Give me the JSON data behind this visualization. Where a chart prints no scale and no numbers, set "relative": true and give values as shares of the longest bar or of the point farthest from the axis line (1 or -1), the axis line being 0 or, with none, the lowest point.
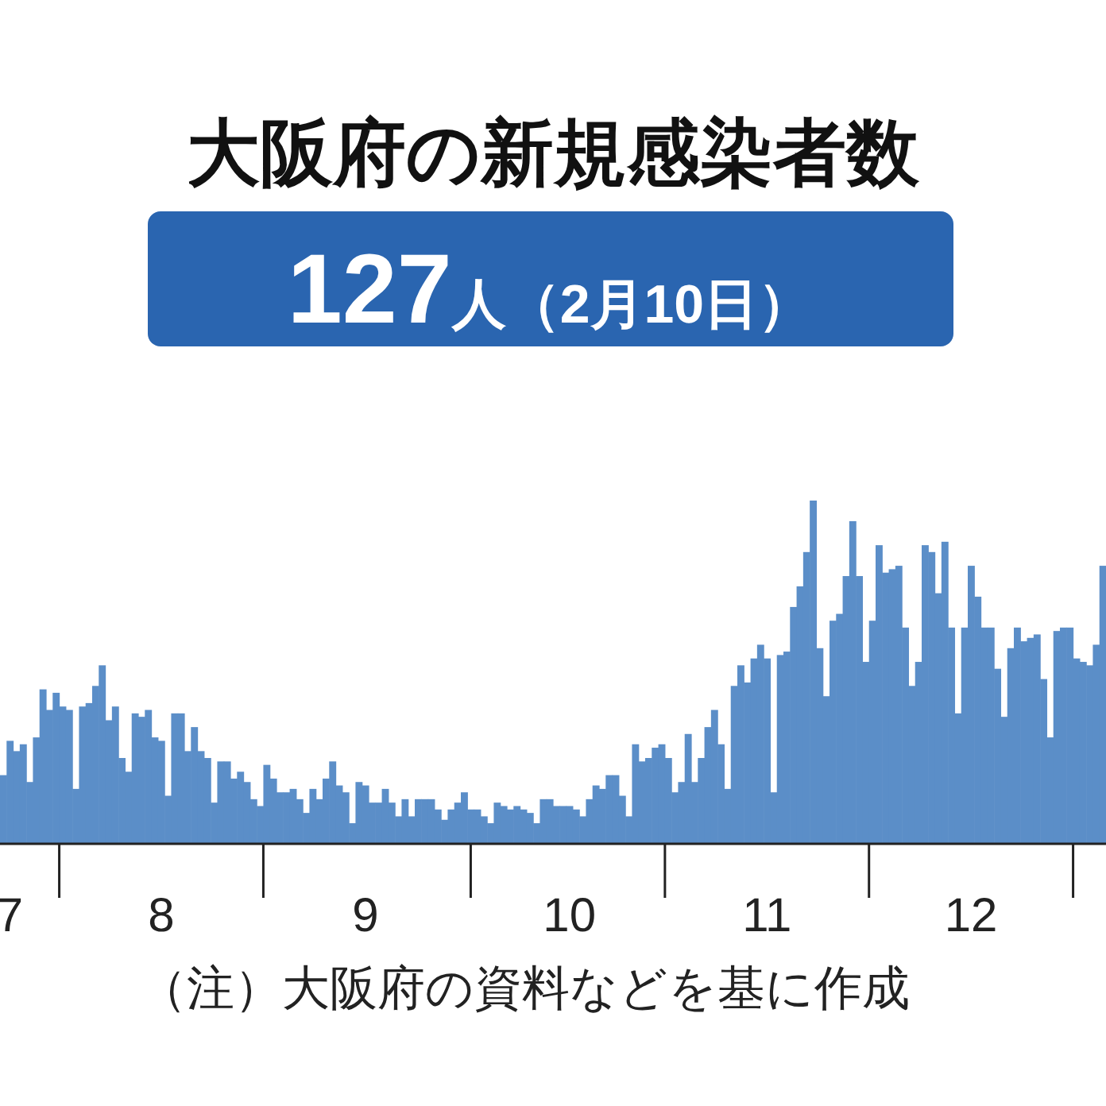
{
  "chart_data": {
    "type": "bar",
    "title": "大阪府の新規感染者数",
    "subtitle": "127人（2月10日）",
    "annotations": [
      "（注）大阪府の資料などを基に作成"
    ],
    "relative": true,
    "color": "#5b8ec8",
    "categories": [
      null,
      "7",
      null,
      null,
      null,
      null,
      null,
      null,
      null,
      null,
      null,
      null,
      null,
      null,
      null,
      null,
      null,
      null,
      null,
      null,
      null,
      null,
      null,
      null,
      "8",
      null,
      null,
      null,
      null,
      null,
      null,
      null,
      null,
      null,
      null,
      null,
      null,
      null,
      null,
      null,
      null,
      null,
      null,
      null,
      null,
      null,
      null,
      null,
      null,
      null,
      null,
      null,
      null,
      null,
      null,
      "9",
      null,
      null,
      null,
      null,
      null,
      null,
      null,
      null,
      null,
      null,
      null,
      null,
      null,
      null,
      null,
      null,
      null,
      null,
      null,
      null,
      null,
      null,
      null,
      null,
      null,
      null,
      null,
      null,
      null,
      null,
      "10",
      null,
      null,
      null,
      null,
      null,
      null,
      null,
      null,
      null,
      null,
      null,
      null,
      null,
      null,
      null,
      null,
      null,
      null,
      null,
      null,
      null,
      null,
      null,
      null,
      null,
      null,
      null,
      null,
      null,
      "11",
      null,
      null,
      null,
      null,
      null,
      null,
      null,
      null,
      null,
      null,
      null,
      null,
      null,
      null,
      null,
      null,
      null,
      null,
      null,
      null,
      null,
      null,
      null,
      null,
      null,
      null,
      null,
      null,
      null,
      null,
      "12",
      null,
      null,
      null,
      null,
      null,
      null,
      null,
      null,
      null,
      null,
      null,
      null,
      null,
      null,
      null,
      null,
      null,
      null,
      null,
      null
    ],
    "values": [
      0.2,
      0.3,
      0.27,
      0.29,
      0.18,
      0.31,
      0.45,
      0.39,
      0.44,
      0.4,
      0.39,
      0.16,
      0.4,
      0.41,
      0.46,
      0.52,
      0.36,
      0.4,
      0.25,
      0.21,
      0.38,
      0.37,
      0.39,
      0.31,
      0.3,
      0.14,
      0.38,
      0.38,
      0.27,
      0.34,
      0.27,
      0.25,
      0.12,
      0.24,
      0.24,
      0.19,
      0.21,
      0.18,
      0.13,
      0.11,
      0.23,
      0.19,
      0.15,
      0.15,
      0.16,
      0.13,
      0.09,
      0.16,
      0.13,
      0.19,
      0.24,
      0.17,
      0.15,
      0.06,
      0.18,
      0.17,
      0.12,
      0.12,
      0.16,
      0.12,
      0.08,
      0.13,
      0.08,
      0.13,
      0.13,
      0.13,
      0.1,
      0.07,
      0.1,
      0.12,
      0.15,
      0.1,
      0.1,
      0.08,
      0.06,
      0.12,
      0.11,
      0.1,
      0.11,
      0.1,
      0.09,
      0.06,
      0.13,
      0.13,
      0.11,
      0.11,
      0.11,
      0.1,
      0.08,
      0.13,
      0.17,
      0.16,
      0.2,
      0.2,
      0.14,
      0.08,
      0.29,
      0.24,
      0.25,
      0.28,
      0.29,
      0.25,
      0.15,
      0.18,
      0.32,
      0.18,
      0.25,
      0.34,
      0.39,
      0.29,
      0.16,
      0.46,
      0.52,
      0.47,
      0.54,
      0.58,
      0.54,
      0.15,
      0.55,
      0.56,
      0.69,
      0.75,
      0.85,
      1,
      0.57,
      0.43,
      0.65,
      0.67,
      0.78,
      0.94,
      0.78,
      0.53,
      0.65,
      0.87,
      0.79,
      0.8,
      0.81,
      0.63,
      0.46,
      0.53,
      0.87,
      0.85,
      0.73,
      0.88,
      0.63,
      0.38,
      0.63,
      0.81,
      0.72,
      0.63,
      0.63,
      0.51,
      0.37,
      0.57,
      0.63,
      0.59,
      0.6,
      0.61,
      0.48,
      0.31,
      0.62,
      0.63,
      0.63,
      0.54,
      0.53,
      0.52,
      0.58,
      0.81
    ]
  }
}
